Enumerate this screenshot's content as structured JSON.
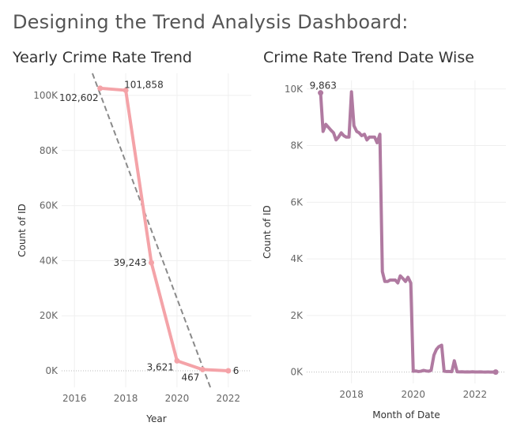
{
  "page_title": "Designing the Trend Analysis Dashboard:",
  "chart_data": [
    {
      "type": "line",
      "title": "Yearly Crime Rate Trend",
      "xlabel": "Year",
      "ylabel": "Count of ID",
      "xlim": [
        2015.5,
        2022.9
      ],
      "ylim": [
        -6000,
        108000
      ],
      "x_ticks": [
        2016,
        2018,
        2020,
        2022
      ],
      "y_ticks": [
        {
          "value": 0,
          "label": "0K"
        },
        {
          "value": 20000,
          "label": "20K"
        },
        {
          "value": 40000,
          "label": "40K"
        },
        {
          "value": 60000,
          "label": "60K"
        },
        {
          "value": 80000,
          "label": "80K"
        },
        {
          "value": 100000,
          "label": "100K"
        }
      ],
      "grid": true,
      "color": "#f4a3a8",
      "trend_color": "#8a8a8a",
      "trend_line": {
        "from": [
          2016.7,
          108000
        ],
        "to": [
          2021.3,
          -6000
        ]
      },
      "points": [
        {
          "x": 2017,
          "y": 102602,
          "label": "102,602"
        },
        {
          "x": 2018,
          "y": 101858,
          "label": "101,858"
        },
        {
          "x": 2019,
          "y": 39243,
          "label": "39,243"
        },
        {
          "x": 2020,
          "y": 3621,
          "label": "3,621"
        },
        {
          "x": 2021,
          "y": 467,
          "label": "467"
        },
        {
          "x": 2022,
          "y": 6,
          "label": "6"
        }
      ]
    },
    {
      "type": "line",
      "title": "Crime Rate Trend Date Wise",
      "xlabel": "Month of Date",
      "ylabel": "Count of ID",
      "xlim": [
        2016.55,
        2023.0
      ],
      "ylim": [
        -400,
        10300
      ],
      "x_ticks": [
        2018,
        2020,
        2022
      ],
      "y_ticks": [
        {
          "value": 0,
          "label": "0K"
        },
        {
          "value": 2000,
          "label": "2K"
        },
        {
          "value": 4000,
          "label": "4K"
        },
        {
          "value": 6000,
          "label": "6K"
        },
        {
          "value": 8000,
          "label": "8K"
        },
        {
          "value": 10000,
          "label": "10K"
        }
      ],
      "grid": true,
      "color": "#b07aa1",
      "max_label": "9,863",
      "x": [
        2017.0,
        2017.08,
        2017.17,
        2017.25,
        2017.33,
        2017.42,
        2017.5,
        2017.58,
        2017.67,
        2017.75,
        2017.83,
        2017.92,
        2018.0,
        2018.08,
        2018.17,
        2018.25,
        2018.33,
        2018.42,
        2018.5,
        2018.58,
        2018.67,
        2018.75,
        2018.83,
        2018.92,
        2019.0,
        2019.08,
        2019.17,
        2019.25,
        2019.33,
        2019.42,
        2019.5,
        2019.58,
        2019.67,
        2019.75,
        2019.83,
        2019.92,
        2020.0,
        2020.08,
        2020.17,
        2020.25,
        2020.33,
        2020.42,
        2020.5,
        2020.58,
        2020.67,
        2020.75,
        2020.83,
        2020.92,
        2021.0,
        2021.08,
        2021.17,
        2021.25,
        2021.33,
        2021.42,
        2021.5,
        2021.58,
        2021.67,
        2021.75,
        2021.83,
        2021.92,
        2022.0,
        2022.08,
        2022.17,
        2022.25,
        2022.33,
        2022.42,
        2022.5,
        2022.58,
        2022.67
      ],
      "y": [
        9863,
        8500,
        8750,
        8650,
        8550,
        8450,
        8200,
        8300,
        8450,
        8350,
        8300,
        8300,
        9900,
        8700,
        8500,
        8450,
        8350,
        8400,
        8200,
        8300,
        8300,
        8300,
        8100,
        8400,
        3550,
        3200,
        3200,
        3250,
        3250,
        3250,
        3150,
        3400,
        3300,
        3200,
        3350,
        3150,
        30,
        40,
        20,
        30,
        60,
        40,
        30,
        60,
        600,
        800,
        900,
        950,
        30,
        20,
        20,
        15,
        400,
        10,
        8,
        12,
        5,
        8,
        5,
        10,
        4,
        3,
        6,
        3,
        2,
        3,
        2,
        1,
        0
      ]
    }
  ]
}
